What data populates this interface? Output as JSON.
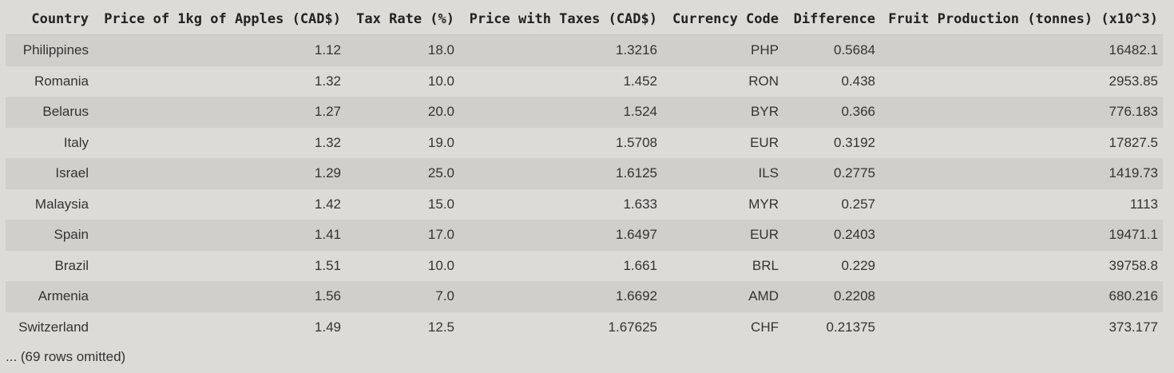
{
  "table": {
    "columns": [
      "Country",
      "Price of 1kg of Apples (CAD$)",
      "Tax Rate (%)",
      "Price with Taxes (CAD$)",
      "Currency Code",
      "Difference",
      "Fruit Production (tonnes) (x10^3)"
    ],
    "rows": [
      [
        "Philippines",
        "1.12",
        "18.0",
        "1.3216",
        "PHP",
        "0.5684",
        "16482.1"
      ],
      [
        "Romania",
        "1.32",
        "10.0",
        "1.452",
        "RON",
        "0.438",
        "2953.85"
      ],
      [
        "Belarus",
        "1.27",
        "20.0",
        "1.524",
        "BYR",
        "0.366",
        "776.183"
      ],
      [
        "Italy",
        "1.32",
        "19.0",
        "1.5708",
        "EUR",
        "0.3192",
        "17827.5"
      ],
      [
        "Israel",
        "1.29",
        "25.0",
        "1.6125",
        "ILS",
        "0.2775",
        "1419.73"
      ],
      [
        "Malaysia",
        "1.42",
        "15.0",
        "1.633",
        "MYR",
        "0.257",
        "1113"
      ],
      [
        "Spain",
        "1.41",
        "17.0",
        "1.6497",
        "EUR",
        "0.2403",
        "19471.1"
      ],
      [
        "Brazil",
        "1.51",
        "10.0",
        "1.661",
        "BRL",
        "0.229",
        "39758.8"
      ],
      [
        "Armenia",
        "1.56",
        "7.0",
        "1.6692",
        "AMD",
        "0.2208",
        "680.216"
      ],
      [
        "Switzerland",
        "1.49",
        "12.5",
        "1.67625",
        "CHF",
        "0.21375",
        "373.177"
      ]
    ]
  },
  "footer": {
    "text": "... (69 rows omitted)"
  }
}
